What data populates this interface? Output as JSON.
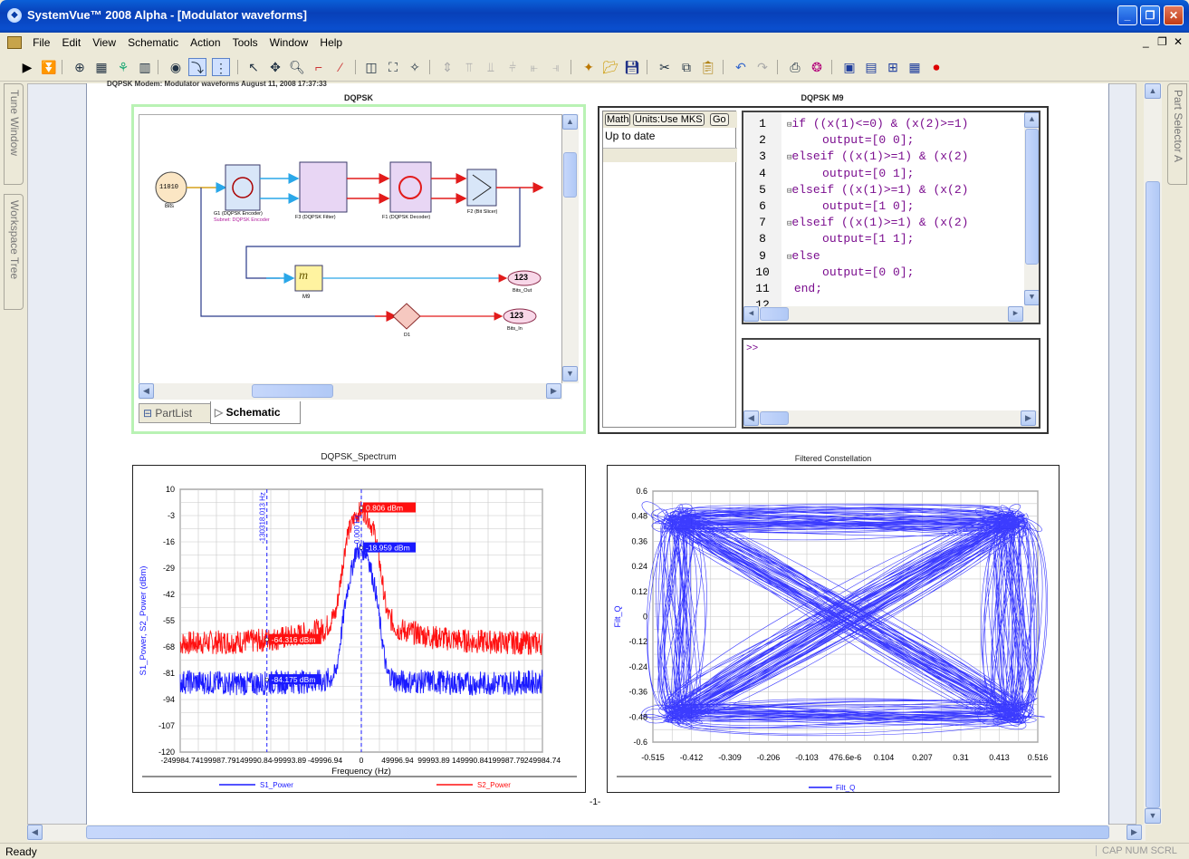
{
  "window": {
    "title": "SystemVue™ 2008 Alpha - [Modulator waveforms]",
    "min": "_",
    "max": "❐",
    "close": "✕"
  },
  "menu": [
    "File",
    "Edit",
    "View",
    "Schematic",
    "Action",
    "Tools",
    "Window",
    "Help"
  ],
  "mdi_controls": [
    "_",
    "❐",
    "✕"
  ],
  "side_tabs": {
    "left": [
      "Tune Window",
      "Workspace Tree"
    ],
    "right": [
      "Part Selector A"
    ]
  },
  "page": {
    "header": "DQPSK Modem: Modulator waveforms   August 11, 2008   17:37:33",
    "page_number": "-1-"
  },
  "schematic_panel": {
    "title": "DQPSK",
    "tabs": [
      "PartList",
      "Schematic"
    ],
    "blocks": {
      "bits": "Bits",
      "encoder": "G1 (DQPSK Encoder)",
      "encoder_sub": "Subnet: DQPSK Encoder",
      "filter": "F3 (DQPSK Filter)",
      "decoder": "F1 (DQPSK Decoder)",
      "slicer": "F2 (Bit Slicer)",
      "math": "M9",
      "bits_out": "Bits_Out",
      "bits_out_val": "123",
      "delay": "D1",
      "bits_in": "Bits_In",
      "bits_in_val": "123",
      "source_bits": "11010"
    }
  },
  "math_panel": {
    "title": "DQPSK M9",
    "buttons": [
      "Math",
      "Units:Use MKS",
      "Go"
    ],
    "status": "Up to date",
    "line_numbers": [
      "1",
      "2",
      "3",
      "4",
      "5",
      "6",
      "7",
      "8",
      "9",
      "10",
      "11",
      "12"
    ],
    "lines": [
      {
        "kw": "if",
        "rest": " ((x(1)<=0) & (x(2)>=1)"
      },
      {
        "kw": "",
        "rest": "    output=[0 0];"
      },
      {
        "kw": "elseif",
        "rest": " ((x(1)>=1) & (x(2)"
      },
      {
        "kw": "",
        "rest": "    output=[0 1];"
      },
      {
        "kw": "elseif",
        "rest": " ((x(1)>=1) & (x(2)"
      },
      {
        "kw": "",
        "rest": "    output=[1 0];"
      },
      {
        "kw": "elseif",
        "rest": " ((x(1)>=1) & (x(2)"
      },
      {
        "kw": "",
        "rest": "    output=[1 1];"
      },
      {
        "kw": "else",
        "rest": ""
      },
      {
        "kw": "",
        "rest": "    output=[0 0];"
      },
      {
        "kw": "end;",
        "rest": ""
      },
      {
        "kw": "",
        "rest": ""
      }
    ],
    "console_prompt": ">>"
  },
  "chart_data": [
    {
      "type": "line",
      "title": "DQPSK_Spectrum",
      "xlabel": "Frequency (Hz)",
      "ylabel": "S1_Power, S2_Power (dBm)",
      "x_ticks": [
        "-249984.74",
        "-199987.79",
        "-149990.84",
        "-99993.89",
        "-49996.94",
        "0",
        "49996.94",
        "99993.89",
        "149990.84",
        "199987.79",
        "249984.74"
      ],
      "y_ticks": [
        "10",
        "-3",
        "-16",
        "-29",
        "-42",
        "-55",
        "-68",
        "-81",
        "-94",
        "-107",
        "-120"
      ],
      "ylim": [
        -120,
        10
      ],
      "xlim": [
        -249984.74,
        249984.74
      ],
      "series": [
        {
          "name": "S1_Power",
          "color": "#1a1aff",
          "x": [
            -249984.74,
            -150000,
            -100000,
            -50000,
            -35000,
            -20000,
            -8000,
            0,
            8000,
            20000,
            35000,
            50000,
            100000,
            150000,
            249984.74
          ],
          "values": [
            -84,
            -85,
            -84,
            -84,
            -80,
            -40,
            -20,
            -19,
            -20,
            -40,
            -80,
            -84,
            -84,
            -85,
            -84
          ]
        },
        {
          "name": "S2_Power",
          "color": "#ff1010",
          "x": [
            -249984.74,
            -150000,
            -100000,
            -50000,
            -35000,
            -20000,
            -8000,
            0,
            8000,
            20000,
            35000,
            50000,
            100000,
            150000,
            249984.74
          ],
          "values": [
            -65,
            -64,
            -62,
            -58,
            -50,
            -12,
            -2,
            0.8,
            -2,
            -12,
            -50,
            -58,
            -62,
            -64,
            -65
          ]
        }
      ],
      "markers": [
        "0.806 dBm",
        "-18.959 dBm",
        "-64.316 dBm",
        "-84.175 dBm"
      ],
      "marker_axis_labels": [
        "-130318.013 Hz",
        "0.000 Hz"
      ],
      "legend": [
        "S1_Power",
        "S2_Power"
      ],
      "legend_position": "bottom",
      "grid": true
    },
    {
      "type": "scatter",
      "title": "Filtered Constellation",
      "ylabel": "Filt_Q",
      "x_ticks": [
        "-0.515",
        "-0.412",
        "-0.309",
        "-0.206",
        "-0.103",
        "476.6e-6",
        "0.104",
        "0.207",
        "0.31",
        "0.413",
        "0.516"
      ],
      "y_ticks": [
        "0.6",
        "0.48",
        "0.36",
        "0.24",
        "0.12",
        "0",
        "-0.12",
        "-0.24",
        "-0.36",
        "-0.48",
        "-0.6"
      ],
      "xlim": [
        -0.515,
        0.516
      ],
      "ylim": [
        -0.6,
        0.6
      ],
      "series": [
        {
          "name": "Filt_Q",
          "color": "#1a1aff",
          "x": [
            -0.45,
            0.45,
            -0.45,
            0.45
          ],
          "values": [
            0.46,
            0.46,
            -0.46,
            -0.46
          ]
        }
      ],
      "legend": [
        "Filt_Q"
      ],
      "legend_position": "bottom",
      "grid": true
    }
  ],
  "status": {
    "left": "Ready",
    "right": "CAP NUM SCRL"
  }
}
